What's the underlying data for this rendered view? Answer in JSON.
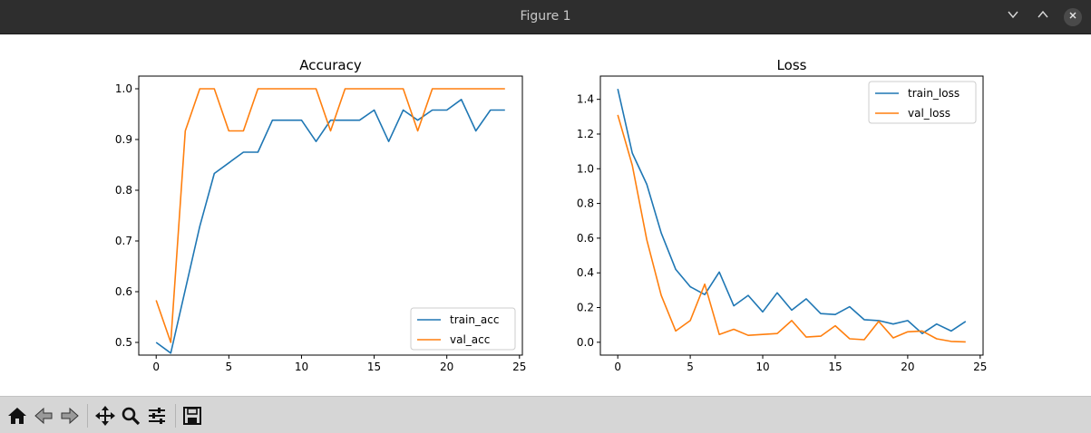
{
  "window": {
    "title": "Figure 1",
    "minimize_icon": "chevron-down-icon",
    "maximize_icon": "chevron-up-icon",
    "close_icon": "close-icon"
  },
  "toolbar": {
    "icons": [
      "home-icon",
      "back-arrow-icon",
      "forward-arrow-icon",
      "pan-icon",
      "zoom-icon",
      "configure-subplots-icon",
      "save-icon"
    ]
  },
  "colors": {
    "series1": "#1f77b4",
    "series2": "#ff7f0e",
    "titlebar": "#2e2e2e",
    "toolbar": "#d6d6d6"
  },
  "chart_data": [
    {
      "type": "line",
      "title": "Accuracy",
      "xlim": [
        -1.2,
        25.2
      ],
      "ylim": [
        0.475,
        1.025
      ],
      "xticks": [
        0,
        5,
        10,
        15,
        20,
        25
      ],
      "yticks": [
        0.5,
        0.6,
        0.7,
        0.8,
        0.9,
        1.0
      ],
      "ytick_labels": [
        "0.5",
        "0.6",
        "0.7",
        "0.8",
        "0.9",
        "1.0"
      ],
      "legend": "lower-right",
      "grid": false,
      "x": [
        0,
        1,
        2,
        3,
        4,
        5,
        6,
        7,
        8,
        9,
        10,
        11,
        12,
        13,
        14,
        15,
        16,
        17,
        18,
        19,
        20,
        21,
        22,
        23,
        24
      ],
      "series": [
        {
          "name": "train_acc",
          "values": [
            0.5,
            0.479,
            0.604,
            0.729,
            0.833,
            0.854,
            0.875,
            0.875,
            0.938,
            0.938,
            0.938,
            0.896,
            0.938,
            0.938,
            0.938,
            0.958,
            0.896,
            0.958,
            0.938,
            0.958,
            0.958,
            0.979,
            0.917,
            0.958,
            0.958
          ]
        },
        {
          "name": "val_acc",
          "values": [
            0.583,
            0.5,
            0.917,
            1.0,
            1.0,
            0.917,
            0.917,
            1.0,
            1.0,
            1.0,
            1.0,
            1.0,
            0.917,
            1.0,
            1.0,
            1.0,
            1.0,
            1.0,
            0.917,
            1.0,
            1.0,
            1.0,
            1.0,
            1.0,
            1.0
          ]
        }
      ]
    },
    {
      "type": "line",
      "title": "Loss",
      "xlim": [
        -1.2,
        25.2
      ],
      "ylim": [
        -0.074,
        1.534
      ],
      "xticks": [
        0,
        5,
        10,
        15,
        20,
        25
      ],
      "yticks": [
        0.0,
        0.2,
        0.4,
        0.6,
        0.8,
        1.0,
        1.2,
        1.4
      ],
      "ytick_labels": [
        "0.0",
        "0.2",
        "0.4",
        "0.6",
        "0.8",
        "1.0",
        "1.2",
        "1.4"
      ],
      "legend": "upper-right",
      "grid": false,
      "x": [
        0,
        1,
        2,
        3,
        4,
        5,
        6,
        7,
        8,
        9,
        10,
        11,
        12,
        13,
        14,
        15,
        16,
        17,
        18,
        19,
        20,
        21,
        22,
        23,
        24
      ],
      "series": [
        {
          "name": "train_loss",
          "values": [
            1.46,
            1.09,
            0.91,
            0.63,
            0.42,
            0.32,
            0.275,
            0.405,
            0.21,
            0.27,
            0.175,
            0.285,
            0.185,
            0.25,
            0.165,
            0.16,
            0.205,
            0.13,
            0.125,
            0.105,
            0.125,
            0.05,
            0.105,
            0.065,
            0.12
          ]
        },
        {
          "name": "val_loss",
          "values": [
            1.31,
            1.02,
            0.59,
            0.27,
            0.065,
            0.125,
            0.335,
            0.045,
            0.075,
            0.04,
            0.045,
            0.05,
            0.125,
            0.03,
            0.035,
            0.095,
            0.02,
            0.015,
            0.12,
            0.025,
            0.06,
            0.065,
            0.02,
            0.005,
            0.002
          ]
        }
      ]
    }
  ]
}
